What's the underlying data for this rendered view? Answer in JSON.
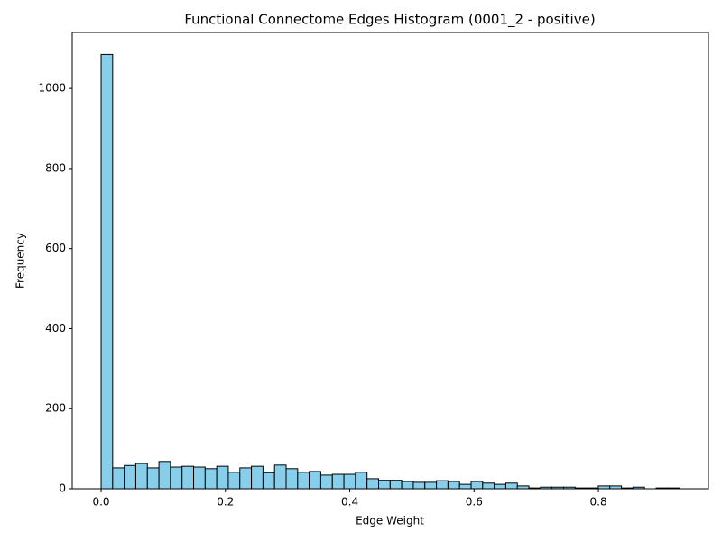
{
  "chart_data": {
    "type": "histogram",
    "title": "Functional Connectome Edges Histogram (0001_2 - positive)",
    "x_label": "Edge Weight",
    "y_label": "Frequency",
    "color": "#87ceeb",
    "edgecolor": "#000000",
    "bins": [
      0,
      0.0186,
      0.0372,
      0.0558,
      0.0744,
      0.093,
      0.1116,
      0.1302,
      0.1488,
      0.1674,
      0.186,
      0.2046,
      0.2232,
      0.2418,
      0.2604,
      0.279,
      0.2976,
      0.3162,
      0.3348,
      0.3534,
      0.372,
      0.3906,
      0.4092,
      0.4278,
      0.4464,
      0.465,
      0.4836,
      0.5022,
      0.5208,
      0.5394,
      0.558,
      0.5766,
      0.5952,
      0.6138,
      0.6324,
      0.651,
      0.6696,
      0.6882,
      0.7068,
      0.7254,
      0.744,
      0.7626,
      0.7812,
      0.7998,
      0.8184,
      0.837,
      0.8556,
      0.8742,
      0.8928,
      0.9114,
      0.93
    ],
    "counts": [
      1085,
      52,
      58,
      63,
      52,
      68,
      54,
      56,
      54,
      50,
      56,
      41,
      52,
      56,
      40,
      59,
      50,
      41,
      43,
      34,
      36,
      36,
      41,
      25,
      21,
      21,
      18,
      16,
      16,
      20,
      18,
      11,
      18,
      14,
      11,
      14,
      7,
      2,
      4,
      4,
      4,
      2,
      2,
      7,
      7,
      2,
      4,
      0,
      2,
      2
    ],
    "xlim": [
      -0.0465,
      0.977
    ],
    "ylim": [
      0,
      1140
    ],
    "xticks": [
      {
        "value": 0,
        "label": "0.0"
      },
      0.2,
      0.4,
      0.6,
      0.8
    ],
    "yticks": [
      0,
      200,
      400,
      600,
      800,
      1000
    ]
  }
}
